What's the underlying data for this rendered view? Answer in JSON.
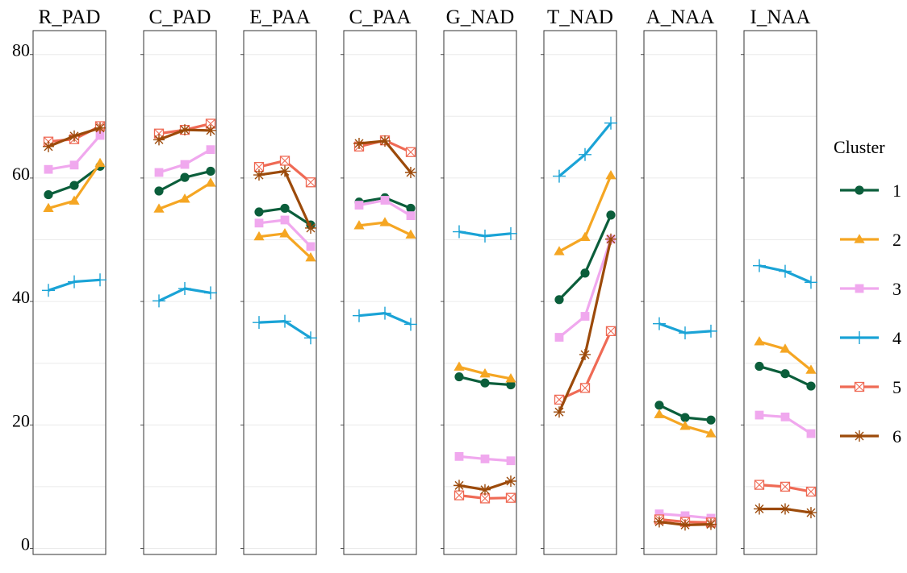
{
  "chart_data": {
    "type": "line",
    "ylim": [
      0,
      80
    ],
    "yticks": [
      0,
      20,
      40,
      60,
      80
    ],
    "grid": true,
    "legend_position": "right",
    "legend": {
      "title": "Cluster",
      "entries": [
        "1",
        "2",
        "3",
        "4",
        "5",
        "6"
      ]
    },
    "colors": {
      "1": "#0b5e3b",
      "2": "#f5a623",
      "3": "#f0a8ee",
      "4": "#1aa3d6",
      "5": "#ef6a55",
      "6": "#9c4a0a"
    },
    "markers": {
      "1": "circle",
      "2": "triangle",
      "3": "square",
      "4": "plus",
      "5": "boxed-x",
      "6": "asterisk"
    },
    "panels": [
      {
        "title": "R_PAD",
        "series": {
          "1": [
            57.3,
            58.8,
            61.9
          ],
          "2": [
            55.1,
            56.3,
            62.4
          ],
          "3": [
            61.4,
            62.1,
            66.9
          ],
          "4": [
            41.8,
            43.2,
            43.5
          ],
          "5": [
            65.9,
            66.3,
            68.4
          ],
          "6": [
            65.1,
            66.8,
            68.1
          ]
        }
      },
      {
        "title": "C_PAD",
        "series": {
          "1": [
            57.9,
            60.1,
            61.1
          ],
          "2": [
            55.0,
            56.6,
            59.2
          ],
          "3": [
            60.9,
            62.2,
            64.6
          ],
          "4": [
            40.1,
            42.1,
            41.4
          ],
          "5": [
            67.2,
            67.8,
            68.8
          ],
          "6": [
            66.2,
            67.8,
            67.7
          ]
        }
      },
      {
        "title": "E_PAA",
        "series": {
          "1": [
            54.5,
            55.1,
            52.4
          ],
          "2": [
            50.5,
            51.0,
            47.1
          ],
          "3": [
            52.7,
            53.2,
            48.9
          ],
          "4": [
            36.6,
            36.8,
            34.1
          ],
          "5": [
            61.8,
            62.8,
            59.3
          ],
          "6": [
            60.5,
            61.1,
            51.9
          ]
        }
      },
      {
        "title": "C_PAA",
        "series": {
          "1": [
            56.1,
            56.8,
            55.1
          ],
          "2": [
            52.3,
            52.8,
            50.8
          ],
          "3": [
            55.6,
            56.4,
            53.9
          ],
          "4": [
            37.7,
            38.1,
            36.3
          ],
          "5": [
            65.1,
            66.1,
            64.2
          ],
          "6": [
            65.6,
            66.0,
            60.9
          ]
        }
      },
      {
        "title": "G_NAD",
        "series": {
          "1": [
            27.8,
            26.8,
            26.5
          ],
          "2": [
            29.4,
            28.3,
            27.5
          ],
          "3": [
            14.9,
            14.5,
            14.2
          ],
          "4": [
            51.3,
            50.6,
            51.0
          ],
          "5": [
            8.6,
            8.1,
            8.2
          ],
          "6": [
            10.2,
            9.5,
            10.9
          ]
        }
      },
      {
        "title": "T_NAD",
        "series": {
          "1": [
            40.3,
            44.6,
            54.0
          ],
          "2": [
            48.1,
            50.4,
            60.4
          ],
          "3": [
            34.2,
            37.6,
            50.1
          ],
          "4": [
            60.3,
            63.8,
            68.9
          ],
          "5": [
            24.1,
            26.0,
            35.2
          ],
          "6": [
            22.1,
            31.4,
            50.1
          ]
        }
      },
      {
        "title": "A_NAA",
        "series": {
          "1": [
            23.2,
            21.2,
            20.8
          ],
          "2": [
            21.7,
            19.8,
            18.6
          ],
          "3": [
            5.6,
            5.3,
            4.9
          ],
          "4": [
            36.4,
            34.9,
            35.2
          ],
          "5": [
            4.7,
            4.3,
            4.2
          ],
          "6": [
            4.3,
            3.8,
            3.9
          ]
        }
      },
      {
        "title": "I_NAA",
        "series": {
          "1": [
            29.5,
            28.3,
            26.3
          ],
          "2": [
            33.5,
            32.3,
            28.9
          ],
          "3": [
            21.6,
            21.3,
            18.6
          ],
          "4": [
            45.8,
            44.9,
            43.1
          ],
          "5": [
            10.3,
            10.0,
            9.2
          ],
          "6": [
            6.4,
            6.4,
            5.8
          ]
        }
      }
    ]
  }
}
